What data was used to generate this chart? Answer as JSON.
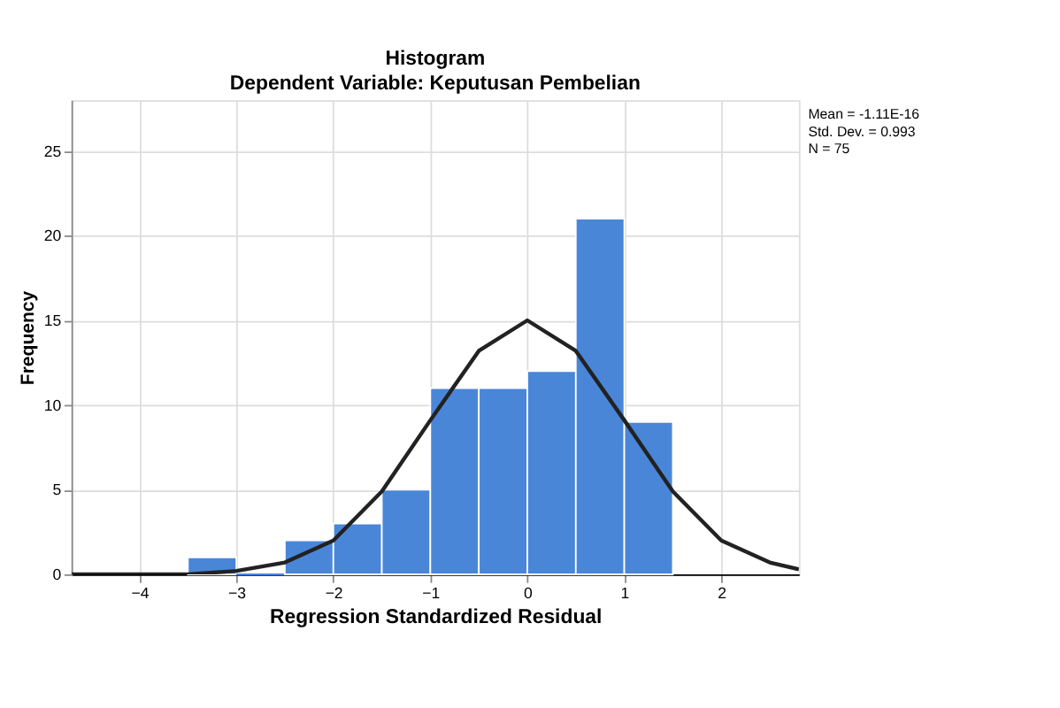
{
  "chart_data": {
    "type": "histogram",
    "title": "Histogram",
    "subtitle": "Dependent Variable: Keputusan Pembelian",
    "xlabel": "Regression Standardized Residual",
    "ylabel": "Frequency",
    "bins": [
      -3.5,
      -3,
      -2.5,
      -2,
      -1.5,
      -1,
      -0.5,
      0,
      0.5,
      1,
      1.5
    ],
    "values": [
      1,
      0,
      2,
      3,
      5,
      11,
      11,
      12,
      21,
      9
    ],
    "color": "#4a86d8",
    "series": [
      {
        "type": "line",
        "color": "#222222",
        "x": [
          -4.7,
          -4.5,
          -4,
          -3.5,
          -3,
          -2.5,
          -2,
          -1.5,
          -1,
          -0.5,
          0,
          0.5,
          1,
          1.5,
          2,
          2.5,
          2.8
        ],
        "values": [
          0,
          0,
          0,
          0,
          0.2,
          0.7,
          2,
          4.9,
          9.1,
          13.2,
          15,
          13.2,
          9.1,
          4.9,
          2,
          0.7,
          0.3
        ]
      }
    ],
    "xlim": [
      -4.7,
      2.8
    ],
    "xticks": [
      -4,
      -3,
      -2,
      -1,
      0,
      1,
      2
    ],
    "ylim": [
      0,
      28
    ],
    "yticks": [
      0,
      5,
      10,
      15,
      20,
      25
    ],
    "grid": true,
    "annotations": [
      "Mean = -1.11E-16",
      "Std. Dev. = 0.993",
      "N = 75"
    ]
  }
}
